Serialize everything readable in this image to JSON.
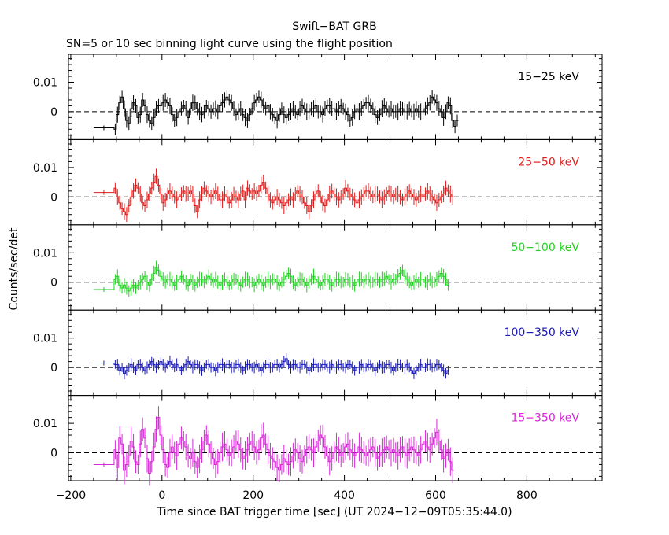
{
  "title": "Swift−BAT GRB",
  "subtitle": "SN=5 or 10 sec binning light curve using the flight position",
  "xlabel": "Time since BAT trigger time [sec] (UT 2024−12−09T05:35:44.0)",
  "ylabel": "Counts/sec/det",
  "chart_data": {
    "type": "line",
    "style": "step-with-error-bars",
    "xlim": [
      -205,
      965
    ],
    "xticks": [
      -200,
      0,
      200,
      400,
      600,
      800
    ],
    "xtick_labels": [
      "−200",
      "0",
      "200",
      "400",
      "600",
      "800"
    ],
    "panel_ylim": [
      -0.0095,
      0.0195
    ],
    "yticks": [
      0,
      0.01
    ],
    "ytick_labels": [
      "0",
      "0.01"
    ],
    "reference_line": 0,
    "bins_start_sec": -105,
    "bin_width_sec": 5,
    "long_bin": {
      "x0": -150,
      "x1": -105
    },
    "panels": [
      {
        "name": "15−25 keV",
        "color": "#000000",
        "long_bin_value": -0.0055,
        "err": 0.0025,
        "values": [
          -0.006,
          -0.001,
          0.003,
          0.005,
          0.001,
          -0.003,
          -0.004,
          0.001,
          0.003,
          0.002,
          -0.002,
          -0.001,
          0.004,
          0.002,
          -0.001,
          -0.003,
          -0.004,
          -0.002,
          0.001,
          0.002,
          0.002,
          0.003,
          0.004,
          0.003,
          0.002,
          -0.001,
          -0.003,
          -0.002,
          0.0,
          0.001,
          0.002,
          0.001,
          -0.002,
          0.001,
          0.003,
          0.003,
          0.001,
          0.0,
          -0.001,
          0.0,
          0.002,
          0.001,
          0.0,
          0.001,
          0.001,
          0.0,
          0.002,
          0.003,
          0.004,
          0.005,
          0.004,
          0.003,
          0.001,
          -0.001,
          0.0,
          0.001,
          -0.001,
          -0.002,
          -0.003,
          -0.001,
          0.001,
          0.003,
          0.004,
          0.005,
          0.004,
          0.002,
          0.001,
          0.002,
          0.0,
          -0.001,
          -0.002,
          -0.003,
          -0.001,
          0.001,
          -0.001,
          -0.002,
          -0.001,
          0.0,
          0.001,
          0.0,
          -0.001,
          0.001,
          0.002,
          0.001,
          0.0,
          0.0,
          0.001,
          0.001,
          0.002,
          0.0,
          0.0,
          -0.001,
          0.001,
          0.002,
          0.002,
          0.001,
          0.001,
          0.0,
          0.001,
          0.002,
          0.001,
          0.0,
          -0.001,
          -0.003,
          -0.002,
          0.0,
          0.001,
          0.0,
          0.001,
          0.002,
          0.003,
          0.003,
          0.002,
          0.001,
          -0.001,
          -0.002,
          -0.001,
          0.001,
          0.002,
          0.001,
          0.0,
          0.001,
          0.0,
          0.0,
          0.0,
          0.001,
          0.001,
          0.0,
          0.0,
          0.001,
          0.0,
          0.0,
          0.001,
          0.0,
          0.0,
          0.0,
          0.001,
          0.002,
          0.003,
          0.005,
          0.004,
          0.003,
          0.001,
          0.0,
          -0.002,
          0.0,
          0.003,
          0.002,
          -0.003,
          -0.005,
          -0.003
        ]
      },
      {
        "name": "25−50 keV",
        "color": "#e01b1b",
        "long_bin_value": 0.0015,
        "err": 0.0025,
        "values": [
          0.003,
          0.0,
          -0.002,
          -0.004,
          -0.005,
          -0.006,
          -0.003,
          0.0,
          0.002,
          0.004,
          0.003,
          0.001,
          -0.002,
          -0.003,
          -0.001,
          0.001,
          0.003,
          0.005,
          0.007,
          0.004,
          0.001,
          -0.002,
          -0.001,
          0.001,
          0.002,
          0.001,
          0.0,
          -0.001,
          0.0,
          0.001,
          0.002,
          0.001,
          0.001,
          0.002,
          0.001,
          -0.003,
          -0.005,
          -0.001,
          0.001,
          0.003,
          0.002,
          0.001,
          0.0,
          0.001,
          0.002,
          0.001,
          -0.001,
          -0.001,
          0.001,
          0.0,
          -0.002,
          -0.001,
          0.001,
          0.0,
          -0.001,
          0.001,
          0.002,
          -0.001,
          0.003,
          0.002,
          0.001,
          0.002,
          0.001,
          0.002,
          0.004,
          0.005,
          0.003,
          0.001,
          -0.001,
          -0.002,
          -0.001,
          0.0,
          -0.001,
          -0.002,
          -0.003,
          -0.002,
          -0.001,
          0.0,
          -0.001,
          0.001,
          0.002,
          0.001,
          0.0,
          -0.002,
          -0.003,
          -0.005,
          -0.003,
          -0.001,
          0.001,
          0.002,
          0.0,
          -0.002,
          -0.003,
          -0.001,
          0.001,
          0.002,
          0.001,
          0.0,
          -0.001,
          0.0,
          0.001,
          0.003,
          0.002,
          0.001,
          0.0,
          -0.001,
          -0.002,
          -0.001,
          0.0,
          0.001,
          0.002,
          0.002,
          0.001,
          0.0,
          0.001,
          0.001,
          0.0,
          -0.001,
          0.0,
          0.001,
          0.002,
          0.001,
          0.0,
          0.001,
          0.001,
          0.0,
          -0.001,
          0.0,
          0.001,
          0.002,
          0.001,
          0.0,
          -0.001,
          0.0,
          0.001,
          0.0,
          0.001,
          0.002,
          0.001,
          0.0,
          -0.001,
          -0.002,
          -0.001,
          0.0,
          0.001,
          0.003,
          0.002,
          0.001,
          0.0
        ]
      },
      {
        "name": "50−100 keV",
        "color": "#1ed31e",
        "long_bin_value": -0.0025,
        "err": 0.0022,
        "values": [
          0.001,
          0.002,
          -0.001,
          -0.002,
          -0.001,
          -0.002,
          -0.003,
          -0.002,
          -0.001,
          -0.002,
          -0.001,
          0.0,
          0.001,
          0.002,
          0.0,
          -0.001,
          0.001,
          0.003,
          0.005,
          0.004,
          0.002,
          0.001,
          0.0,
          0.001,
          0.001,
          0.0,
          -0.001,
          0.0,
          0.001,
          0.002,
          0.001,
          0.0,
          -0.001,
          0.001,
          0.0,
          -0.001,
          0.0,
          0.001,
          0.001,
          0.0,
          0.001,
          0.002,
          0.001,
          0.0,
          0.001,
          0.0,
          -0.001,
          0.0,
          0.001,
          0.0,
          -0.001,
          0.0,
          0.001,
          0.001,
          0.0,
          -0.001,
          0.0,
          0.001,
          0.001,
          0.0,
          0.0,
          -0.001,
          0.0,
          0.001,
          0.0,
          -0.001,
          0.0,
          0.001,
          0.0,
          0.001,
          0.001,
          0.0,
          -0.001,
          0.0,
          0.001,
          0.002,
          0.003,
          0.002,
          0.0,
          -0.001,
          0.0,
          0.001,
          0.001,
          0.0,
          -0.001,
          0.0,
          0.001,
          0.002,
          0.001,
          0.0,
          -0.001,
          0.0,
          0.001,
          0.001,
          0.0,
          -0.001,
          0.0,
          0.001,
          0.001,
          0.0,
          0.0,
          0.001,
          0.001,
          0.0,
          0.0,
          -0.001,
          0.0,
          0.001,
          0.001,
          0.0,
          0.001,
          0.001,
          0.0,
          0.0,
          0.001,
          0.001,
          0.0,
          0.001,
          0.001,
          0.002,
          0.001,
          0.0,
          0.001,
          0.001,
          0.002,
          0.003,
          0.004,
          0.002,
          0.001,
          0.0,
          -0.001,
          0.0,
          0.001,
          0.0,
          0.001,
          0.001,
          0.0,
          0.0,
          0.001,
          0.0,
          0.0,
          0.001,
          0.002,
          0.003,
          0.002,
          0.001,
          -0.001
        ]
      },
      {
        "name": "100−350 keV",
        "color": "#1818b8",
        "long_bin_value": 0.0015,
        "err": 0.0018,
        "values": [
          0.001,
          0.001,
          -0.001,
          0.0,
          -0.002,
          -0.001,
          0.0,
          0.001,
          0.0,
          -0.001,
          0.001,
          0.001,
          0.0,
          -0.001,
          0.0,
          0.001,
          0.002,
          0.001,
          0.0,
          0.001,
          0.002,
          0.001,
          0.0,
          0.001,
          0.002,
          0.001,
          0.0,
          0.001,
          0.0,
          -0.001,
          0.0,
          0.001,
          0.002,
          0.001,
          0.0,
          0.001,
          0.001,
          0.0,
          -0.001,
          0.0,
          0.001,
          0.001,
          0.0,
          0.0,
          -0.001,
          0.0,
          0.001,
          0.001,
          0.0,
          0.001,
          0.001,
          0.0,
          0.0,
          0.001,
          0.001,
          0.0,
          -0.001,
          0.0,
          0.001,
          0.001,
          0.0,
          0.0,
          0.001,
          0.0,
          -0.001,
          0.0,
          0.001,
          0.001,
          0.0,
          0.0,
          0.001,
          0.001,
          0.0,
          0.001,
          0.002,
          0.003,
          0.001,
          0.0,
          0.001,
          0.001,
          0.0,
          0.0,
          0.001,
          0.001,
          0.0,
          -0.001,
          0.0,
          0.001,
          0.001,
          0.0,
          0.0,
          0.001,
          0.001,
          0.0,
          0.0,
          0.001,
          0.0,
          0.0,
          0.001,
          0.001,
          0.0,
          0.0,
          0.001,
          0.001,
          0.0,
          -0.001,
          0.0,
          0.0,
          0.001,
          0.0,
          0.0,
          0.001,
          0.001,
          0.0,
          -0.001,
          0.0,
          0.001,
          0.0,
          0.0,
          0.001,
          0.001,
          0.0,
          -0.001,
          0.0,
          0.001,
          0.001,
          0.0,
          0.0,
          0.001,
          0.0,
          -0.001,
          -0.002,
          -0.001,
          0.0,
          0.001,
          0.0,
          0.0,
          0.001,
          0.001,
          0.0,
          0.0,
          0.001,
          0.001,
          0.0,
          -0.001,
          -0.002,
          -0.001
        ]
      },
      {
        "name": "15−350 keV",
        "color": "#d926d9",
        "long_bin_value": -0.004,
        "err": 0.0042,
        "values": [
          0.001,
          -0.005,
          0.005,
          0.003,
          -0.006,
          -0.004,
          -0.001,
          0.004,
          0.002,
          -0.003,
          -0.004,
          0.003,
          0.008,
          0.005,
          -0.002,
          -0.007,
          -0.003,
          0.002,
          0.008,
          0.012,
          0.006,
          0.001,
          -0.004,
          -0.005,
          0.0,
          0.002,
          0.0,
          -0.001,
          0.003,
          0.005,
          0.004,
          0.002,
          -0.001,
          -0.002,
          0.0,
          -0.003,
          -0.005,
          -0.002,
          0.001,
          0.004,
          0.006,
          0.003,
          0.0,
          -0.002,
          -0.004,
          -0.003,
          0.0,
          0.002,
          0.003,
          0.001,
          -0.001,
          0.0,
          0.002,
          0.004,
          0.003,
          0.001,
          -0.002,
          -0.001,
          0.001,
          0.003,
          0.004,
          0.002,
          0.0,
          0.001,
          0.005,
          0.006,
          0.003,
          0.001,
          -0.001,
          -0.002,
          -0.003,
          -0.005,
          -0.006,
          -0.004,
          -0.002,
          -0.003,
          -0.004,
          -0.003,
          -0.001,
          0.001,
          0.0,
          -0.002,
          -0.003,
          -0.001,
          0.001,
          0.002,
          0.001,
          0.0,
          0.002,
          0.004,
          0.006,
          0.005,
          0.002,
          -0.001,
          -0.003,
          -0.002,
          0.0,
          0.002,
          0.001,
          -0.001,
          0.0,
          0.002,
          0.003,
          0.001,
          0.0,
          -0.001,
          0.0,
          0.002,
          0.001,
          0.0,
          -0.001,
          0.0,
          0.001,
          0.002,
          0.0,
          -0.002,
          -0.001,
          0.0,
          0.001,
          0.002,
          0.001,
          0.0,
          0.001,
          0.0,
          -0.001,
          0.001,
          0.002,
          0.0,
          -0.001,
          0.001,
          0.002,
          0.001,
          0.0,
          -0.001,
          0.001,
          0.003,
          0.004,
          0.002,
          0.001,
          0.003,
          0.005,
          0.007,
          0.004,
          0.001,
          -0.002,
          -0.001,
          0.001,
          -0.003,
          -0.006
        ]
      }
    ]
  }
}
